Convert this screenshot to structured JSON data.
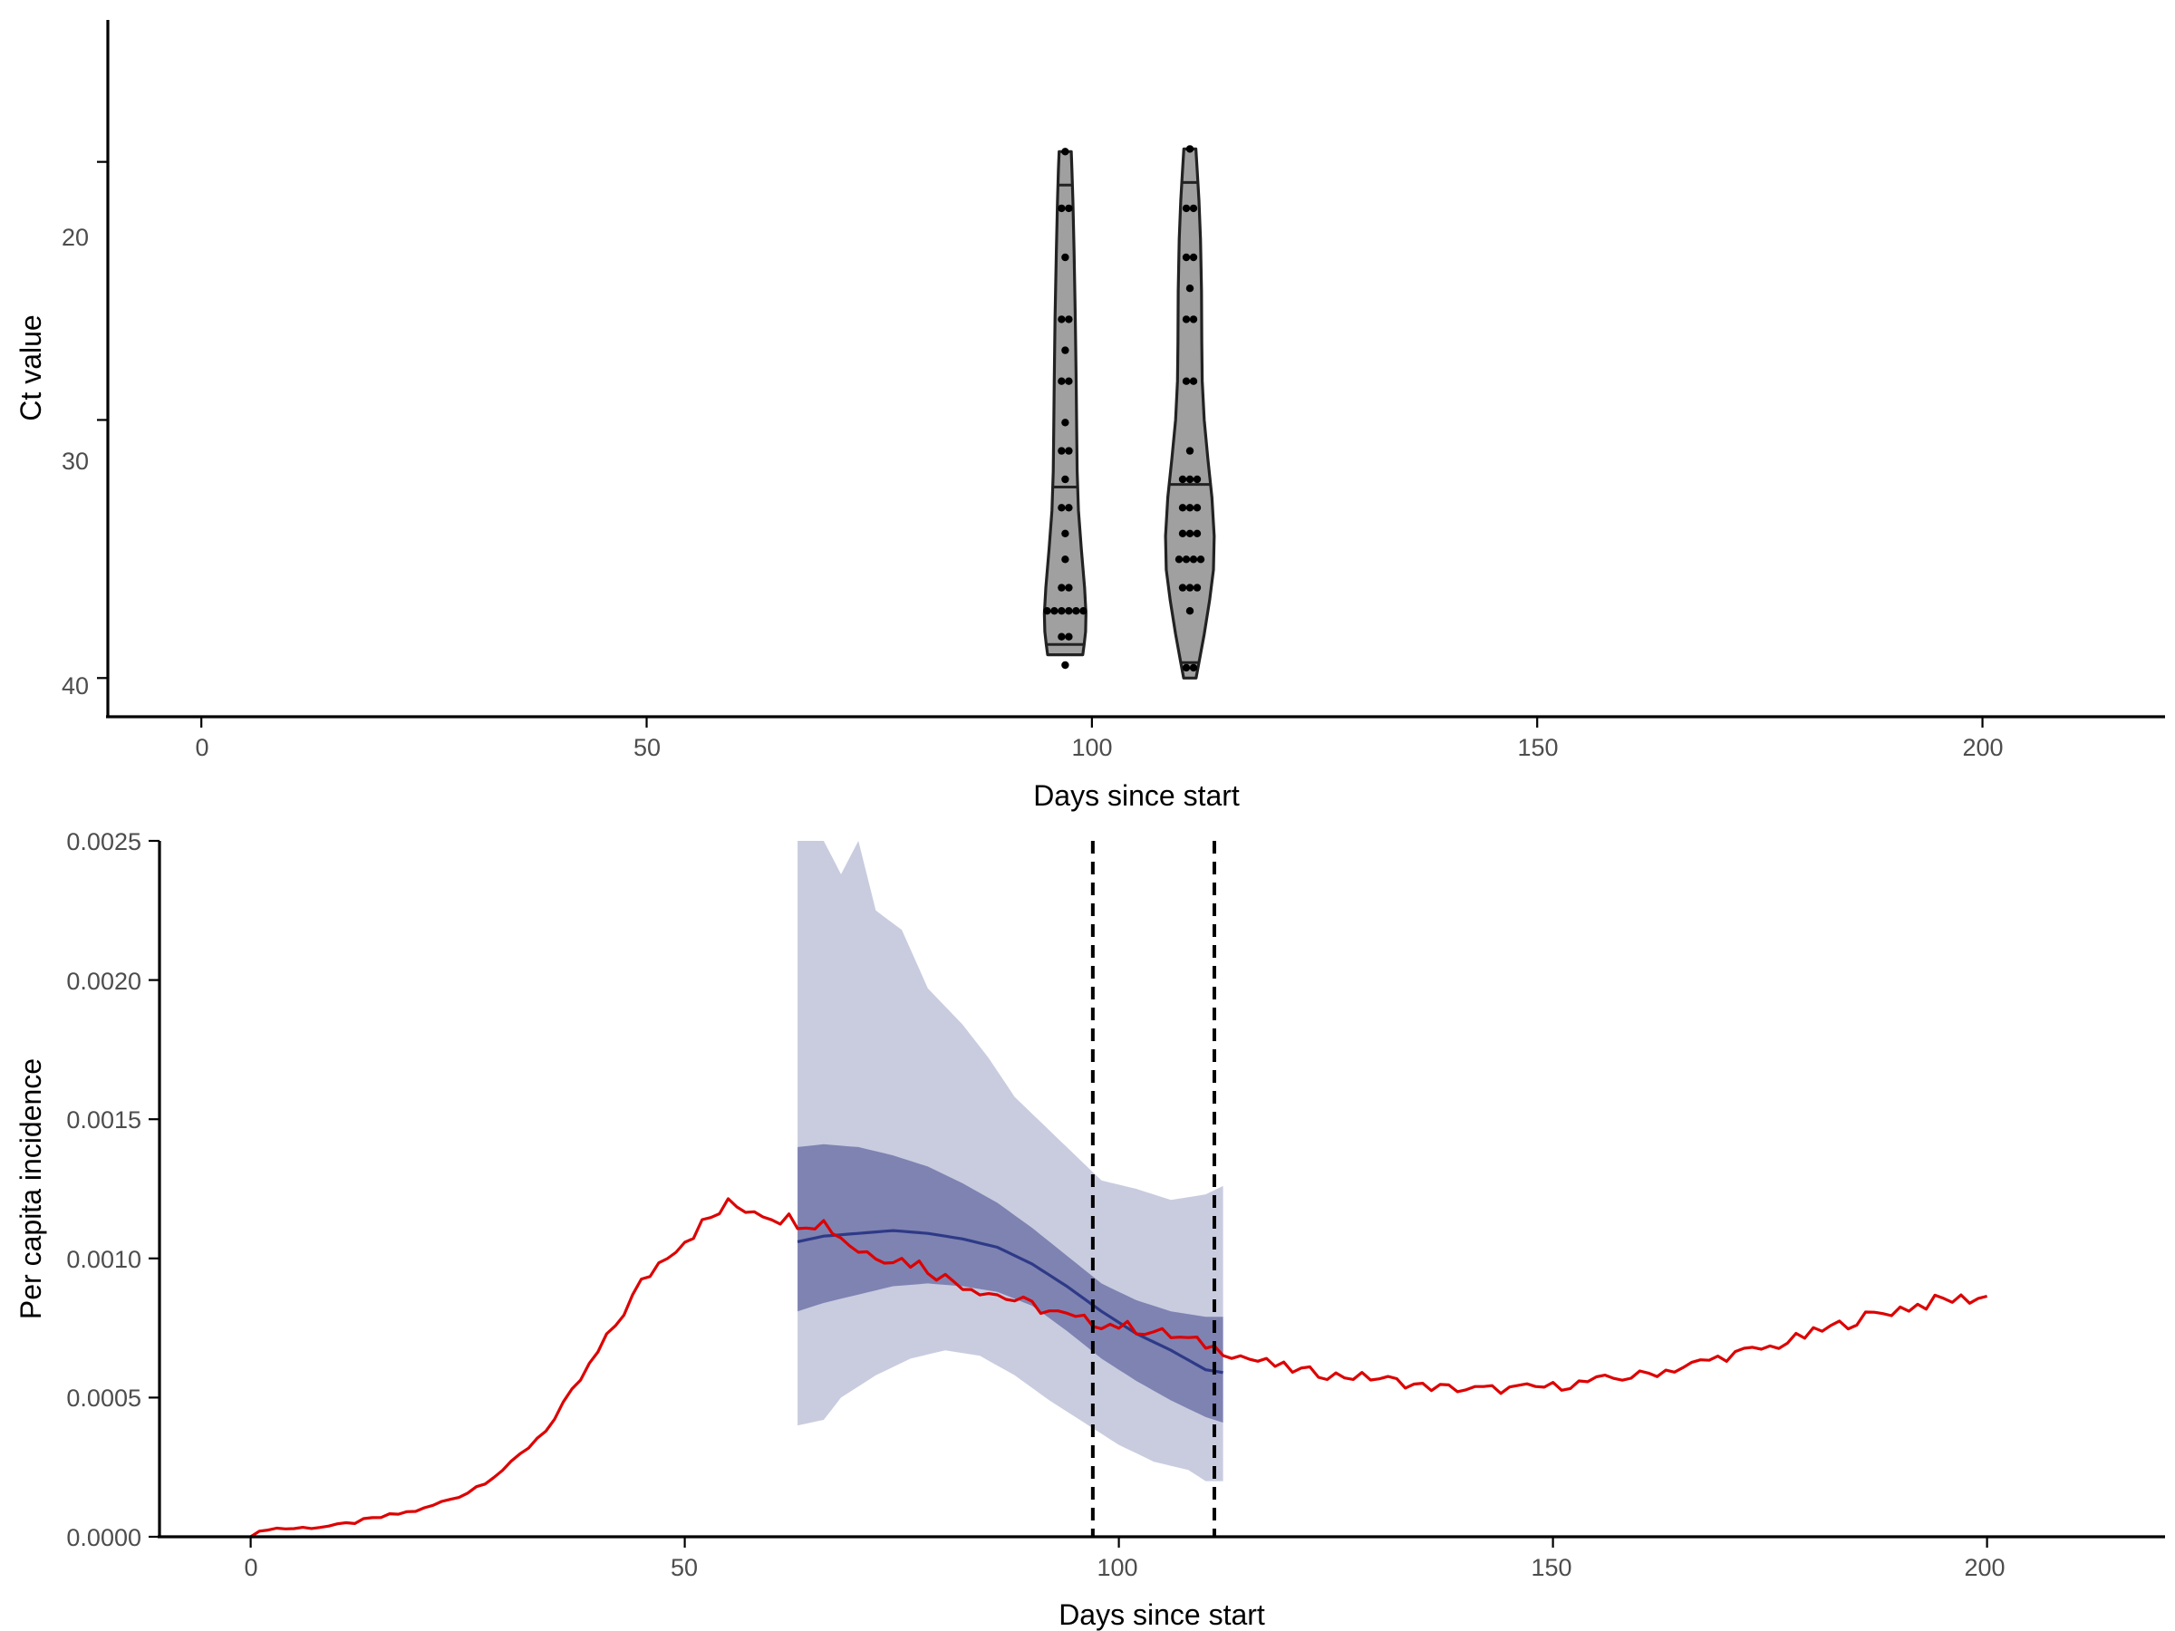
{
  "chart_data": [
    {
      "type": "violin",
      "xlabel": "Days since start",
      "ylabel": "Ct value",
      "xlim": [
        -10.5,
        220.5
      ],
      "ylim": [
        41.5,
        14.5
      ],
      "y_reversed": true,
      "x_ticks": [
        0,
        50,
        100,
        150,
        200
      ],
      "x_tick_labels": [
        "0",
        "50",
        "100",
        "150",
        "200"
      ],
      "y_ticks": [
        20,
        30,
        40
      ],
      "y_tick_labels": [
        "20",
        "30",
        "40"
      ],
      "fill_color": "#a0a0a0",
      "outline_color": "#222222",
      "point_color": "#000000",
      "violins": [
        {
          "day": 97,
          "quantiles": [
            20.9,
            32.6,
            38.7
          ],
          "profile": [
            [
              19.6,
              4.3
            ],
            [
              20.3,
              4.8
            ],
            [
              21.5,
              5.5
            ],
            [
              23.5,
              6.3
            ],
            [
              26,
              7.2
            ],
            [
              28.5,
              7.8
            ],
            [
              30.5,
              8.2
            ],
            [
              32,
              8.5
            ],
            [
              33.5,
              9.4
            ],
            [
              35,
              11.5
            ],
            [
              36.5,
              13.8
            ],
            [
              37.5,
              14.8
            ],
            [
              38.2,
              14.5
            ],
            [
              38.7,
              13.5
            ],
            [
              39.1,
              12.5
            ]
          ],
          "points": [
            19.6,
            21.8,
            21.8,
            23.7,
            26.1,
            26.1,
            27.3,
            28.5,
            28.5,
            30.1,
            31.2,
            31.2,
            32.3,
            33.4,
            33.4,
            34.4,
            35.4,
            36.5,
            36.5,
            37.4,
            37.4,
            37.4,
            37.4,
            37.4,
            37.4,
            38.4,
            38.4,
            39.5
          ]
        },
        {
          "day": 111,
          "quantiles": [
            20.8,
            32.5,
            39.4
          ],
          "profile": [
            [
              19.5,
              4.3
            ],
            [
              20.3,
              5.2
            ],
            [
              21.5,
              6.5
            ],
            [
              23,
              7.6
            ],
            [
              25,
              8.3
            ],
            [
              27,
              8.5
            ],
            [
              28.5,
              8.8
            ],
            [
              30,
              10.2
            ],
            [
              31.5,
              12.8
            ],
            [
              33,
              15.7
            ],
            [
              34.5,
              17.3
            ],
            [
              35.8,
              16.8
            ],
            [
              37,
              14.0
            ],
            [
              38.3,
              10.2
            ],
            [
              39.4,
              6.5
            ],
            [
              40,
              4.4
            ]
          ],
          "points": [
            19.5,
            21.8,
            21.8,
            23.7,
            23.7,
            24.9,
            26.1,
            26.1,
            28.5,
            28.5,
            31.2,
            32.3,
            32.3,
            32.3,
            33.4,
            33.4,
            33.4,
            34.4,
            34.4,
            34.4,
            35.4,
            35.4,
            35.4,
            35.4,
            36.5,
            36.5,
            36.5,
            37.4,
            39.6,
            39.6
          ]
        }
      ]
    },
    {
      "type": "line",
      "xlabel": "Days since start",
      "ylabel": "Per capita incidence",
      "xlim": [
        -10.5,
        220.5
      ],
      "ylim": [
        0,
        0.0025
      ],
      "x_ticks": [
        0,
        50,
        100,
        150,
        200
      ],
      "x_tick_labels": [
        "0",
        "50",
        "100",
        "150",
        "200"
      ],
      "y_ticks": [
        0,
        0.0005,
        0.001,
        0.0015,
        0.002,
        0.0025
      ],
      "y_tick_labels": [
        "0.0000",
        "0.0005",
        "0.0010",
        "0.0015",
        "0.0020",
        "0.0025"
      ],
      "vlines": [
        97,
        111
      ],
      "observed_color": "#dd0000",
      "median_color": "#2e3a87",
      "inner_band_color": "#7f83b2",
      "outer_band_color": "#c9ccdf",
      "observed_knots": [
        [
          0,
          0
        ],
        [
          2,
          3e-05
        ],
        [
          5,
          3e-05
        ],
        [
          10,
          4e-05
        ],
        [
          15,
          7e-05
        ],
        [
          20,
          0.0001
        ],
        [
          25,
          0.00016
        ],
        [
          30,
          0.00026
        ],
        [
          35,
          0.00042
        ],
        [
          40,
          0.00066
        ],
        [
          45,
          0.00091
        ],
        [
          48,
          0.00102
        ],
        [
          52,
          0.00112
        ],
        [
          55,
          0.00119
        ],
        [
          58,
          0.00118
        ],
        [
          62,
          0.00114
        ],
        [
          66,
          0.00113
        ],
        [
          70,
          0.00103
        ],
        [
          73,
          0.00101
        ],
        [
          77,
          0.00098
        ],
        [
          80,
          0.00093
        ],
        [
          85,
          0.00088
        ],
        [
          90,
          0.00083
        ],
        [
          95,
          0.00078
        ],
        [
          100,
          0.00076
        ],
        [
          105,
          0.00073
        ],
        [
          110,
          0.00069
        ],
        [
          115,
          0.00064
        ],
        [
          120,
          0.0006
        ],
        [
          125,
          0.00058
        ],
        [
          130,
          0.00057
        ],
        [
          135,
          0.00054
        ],
        [
          140,
          0.00053
        ],
        [
          145,
          0.00053
        ],
        [
          150,
          0.00054
        ],
        [
          155,
          0.00056
        ],
        [
          160,
          0.00058
        ],
        [
          165,
          0.00061
        ],
        [
          170,
          0.00065
        ],
        [
          175,
          0.00068
        ],
        [
          180,
          0.00073
        ],
        [
          185,
          0.00078
        ],
        [
          190,
          0.00082
        ],
        [
          195,
          0.00085
        ],
        [
          200,
          0.00086
        ]
      ],
      "median_knots": [
        [
          63,
          0.00106
        ],
        [
          66,
          0.00108
        ],
        [
          70,
          0.00109
        ],
        [
          74,
          0.0011
        ],
        [
          78,
          0.00109
        ],
        [
          82,
          0.00107
        ],
        [
          86,
          0.00104
        ],
        [
          90,
          0.00098
        ],
        [
          94,
          0.0009
        ],
        [
          98,
          0.00081
        ],
        [
          102,
          0.00073
        ],
        [
          106,
          0.00067
        ],
        [
          110,
          0.0006
        ],
        [
          112,
          0.00059
        ]
      ],
      "inner_upper_knots": [
        [
          63,
          0.0014
        ],
        [
          66,
          0.00141
        ],
        [
          70,
          0.0014
        ],
        [
          74,
          0.00137
        ],
        [
          78,
          0.00133
        ],
        [
          82,
          0.00127
        ],
        [
          86,
          0.0012
        ],
        [
          90,
          0.00111
        ],
        [
          94,
          0.00101
        ],
        [
          98,
          0.00091
        ],
        [
          102,
          0.00085
        ],
        [
          106,
          0.00081
        ],
        [
          110,
          0.00079
        ],
        [
          112,
          0.00079
        ]
      ],
      "inner_lower_knots": [
        [
          63,
          0.00081
        ],
        [
          66,
          0.00084
        ],
        [
          70,
          0.00087
        ],
        [
          74,
          0.0009
        ],
        [
          78,
          0.00091
        ],
        [
          82,
          0.0009
        ],
        [
          86,
          0.00088
        ],
        [
          90,
          0.00083
        ],
        [
          94,
          0.00074
        ],
        [
          98,
          0.00064
        ],
        [
          102,
          0.00056
        ],
        [
          106,
          0.00049
        ],
        [
          110,
          0.00043
        ],
        [
          112,
          0.00041
        ]
      ],
      "outer_upper_knots": [
        [
          63,
          0.0025
        ],
        [
          66,
          0.0025
        ],
        [
          68,
          0.00238
        ],
        [
          70,
          0.0025
        ],
        [
          72,
          0.00225
        ],
        [
          75,
          0.00218
        ],
        [
          78,
          0.00197
        ],
        [
          82,
          0.00184
        ],
        [
          85,
          0.00172
        ],
        [
          88,
          0.00158
        ],
        [
          92,
          0.00146
        ],
        [
          95,
          0.00137
        ],
        [
          98,
          0.00128
        ],
        [
          102,
          0.00125
        ],
        [
          106,
          0.00121
        ],
        [
          110,
          0.00123
        ],
        [
          112,
          0.00126
        ]
      ],
      "outer_lower_knots": [
        [
          63,
          0.0004
        ],
        [
          66,
          0.00042
        ],
        [
          68,
          0.0005
        ],
        [
          72,
          0.00058
        ],
        [
          76,
          0.00064
        ],
        [
          80,
          0.00067
        ],
        [
          84,
          0.00065
        ],
        [
          88,
          0.00058
        ],
        [
          92,
          0.00049
        ],
        [
          96,
          0.00041
        ],
        [
          100,
          0.00033
        ],
        [
          104,
          0.00027
        ],
        [
          108,
          0.00024
        ],
        [
          110,
          0.0002
        ],
        [
          112,
          0.0002
        ]
      ]
    }
  ]
}
